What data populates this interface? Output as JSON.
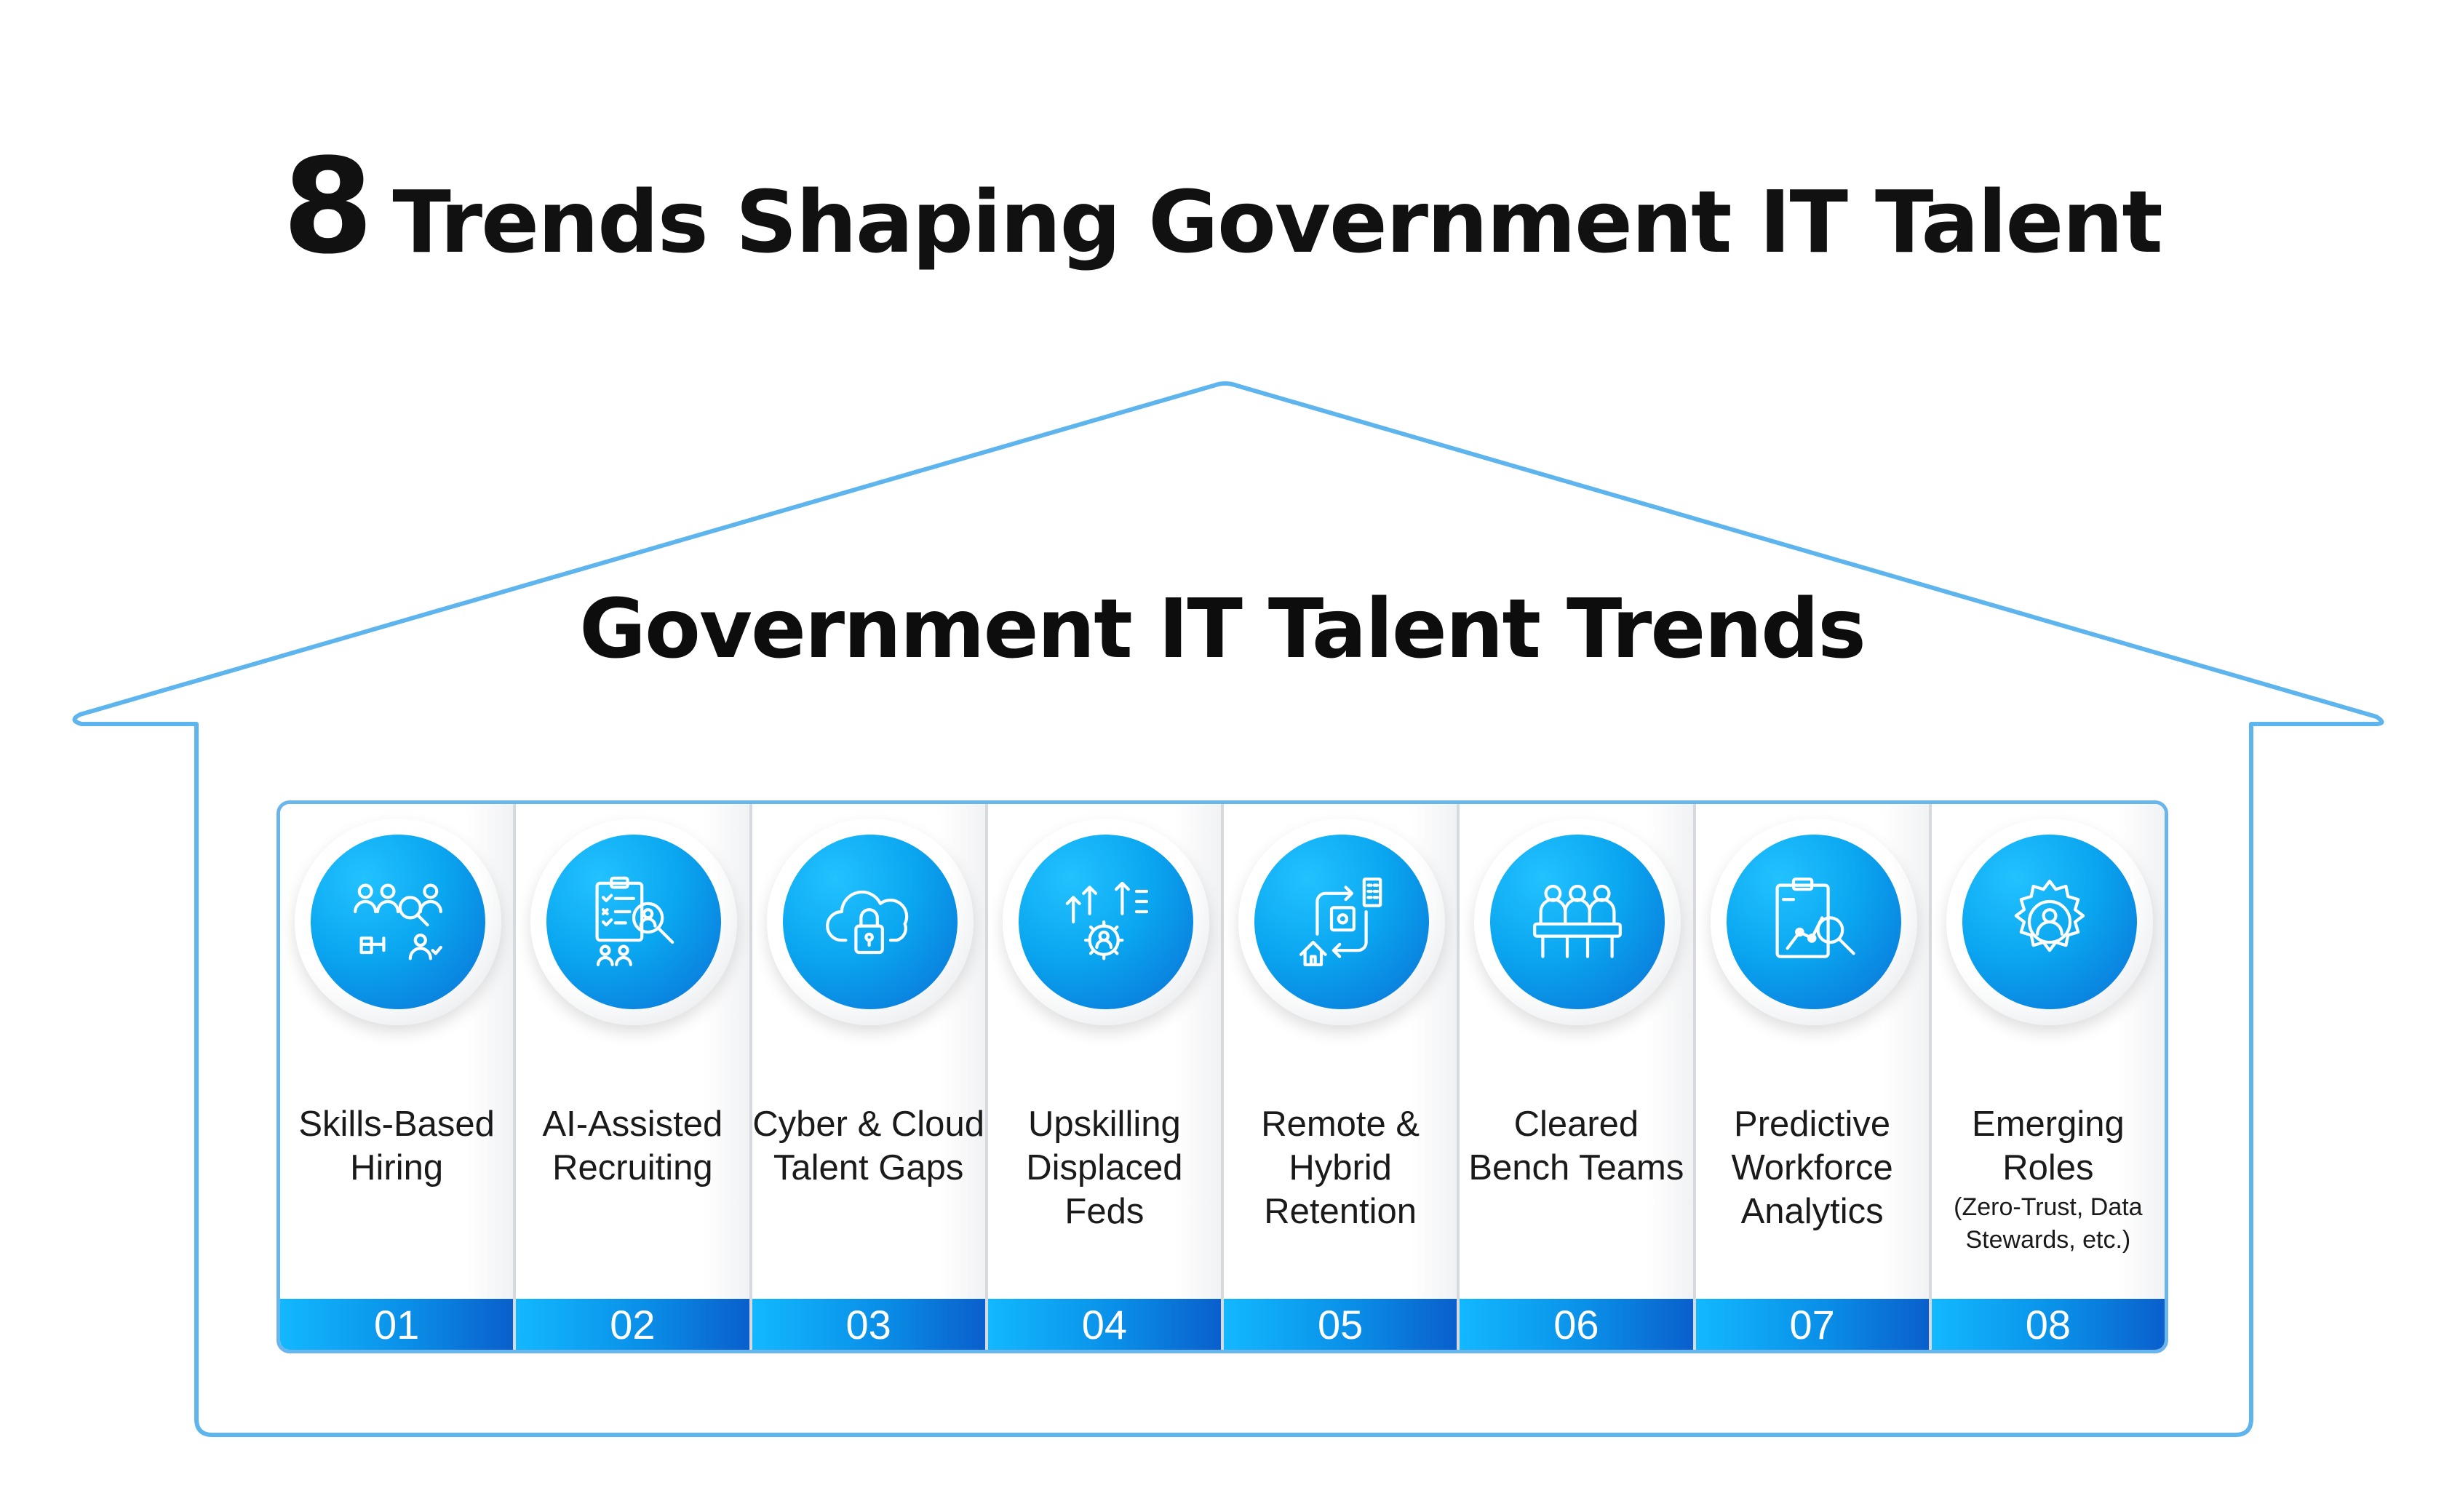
{
  "header": {
    "number": "8",
    "title": "Trends Shaping Government IT Talent"
  },
  "house": {
    "title": "Government IT Talent Trends",
    "outline_color": "#5eb4ec"
  },
  "colors": {
    "accent_light": "#12b8ff",
    "accent_dark": "#0a5fcc",
    "text": "#111111"
  },
  "trends": [
    {
      "number": "01",
      "label": "Skills-Based Hiring",
      "note": "",
      "icon": "people-search-icon"
    },
    {
      "number": "02",
      "label": "AI-Assisted Recruiting",
      "note": "",
      "icon": "clipboard-candidate-search-icon"
    },
    {
      "number": "03",
      "label": "Cyber & Cloud Talent Gaps",
      "note": "",
      "icon": "cloud-lock-icon"
    },
    {
      "number": "04",
      "label": "Upskilling Displaced Feds",
      "note": "",
      "icon": "growth-arrows-gear-icon"
    },
    {
      "number": "05",
      "label": "Remote & Hybrid Retention",
      "note": "",
      "icon": "home-office-cycle-icon"
    },
    {
      "number": "06",
      "label": "Cleared Bench Teams",
      "note": "",
      "icon": "bench-team-icon"
    },
    {
      "number": "07",
      "label": "Predictive Workforce Analytics",
      "note": "",
      "icon": "clipboard-analytics-icon"
    },
    {
      "number": "08",
      "label": "Emerging Roles",
      "note": "(Zero-Trust, Data Stewards, etc.)",
      "icon": "gear-person-icon"
    }
  ]
}
